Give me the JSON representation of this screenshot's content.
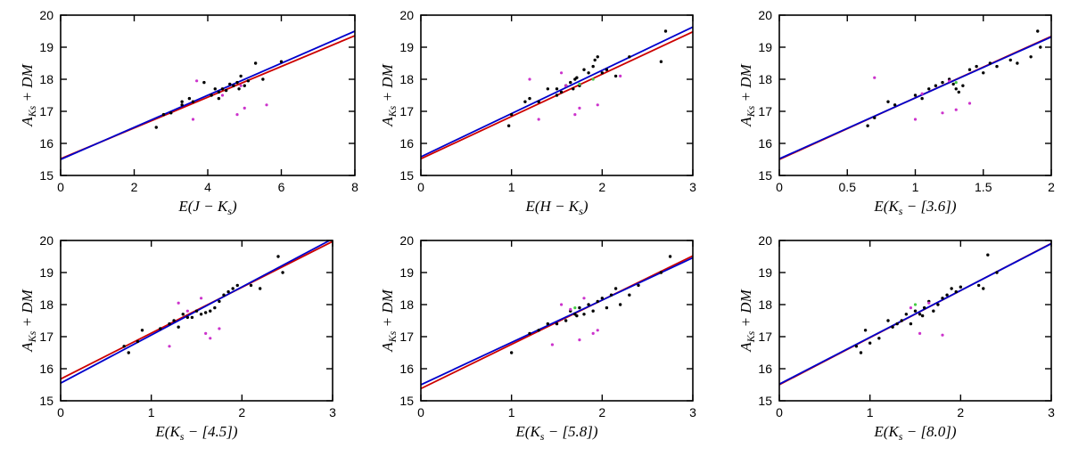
{
  "colors": {
    "points": "#000000",
    "outliers": "#cc33cc",
    "green_points": "#44cc44",
    "fit_red": "#cc0000",
    "fit_blue": "#0000cc"
  },
  "chart_data": [
    {
      "type": "scatter",
      "xlabel": "E(J − K_s)",
      "ylabel": "A_Ks + DM",
      "xlim": [
        0,
        8
      ],
      "ylim": [
        15,
        20
      ],
      "xticks": [
        "0",
        "2",
        "4",
        "6",
        "8"
      ],
      "yticks": [
        "15",
        "16",
        "17",
        "18",
        "19",
        "20"
      ],
      "lines": [
        {
          "color": "red",
          "intercept": 15.52,
          "slope": 0.48
        },
        {
          "color": "blue",
          "intercept": 15.5,
          "slope": 0.5
        }
      ],
      "points": [
        [
          2.6,
          16.5
        ],
        [
          2.8,
          16.9
        ],
        [
          3.0,
          16.95
        ],
        [
          3.3,
          17.2
        ],
        [
          3.3,
          17.3
        ],
        [
          3.5,
          17.4
        ],
        [
          3.6,
          17.3
        ],
        [
          3.9,
          17.9
        ],
        [
          4.1,
          17.5
        ],
        [
          4.2,
          17.7
        ],
        [
          4.3,
          17.6
        ],
        [
          4.4,
          17.7
        ],
        [
          4.5,
          17.65
        ],
        [
          4.7,
          17.8
        ],
        [
          4.8,
          17.9
        ],
        [
          4.9,
          18.1
        ],
        [
          5.0,
          17.8
        ],
        [
          5.1,
          17.95
        ],
        [
          5.3,
          18.5
        ],
        [
          5.5,
          18.0
        ],
        [
          6.0,
          18.55
        ],
        [
          4.6,
          17.85
        ],
        [
          4.85,
          17.7
        ],
        [
          4.3,
          17.4
        ]
      ],
      "outliers": [
        [
          3.7,
          17.95
        ],
        [
          3.6,
          16.75
        ],
        [
          4.8,
          16.9
        ],
        [
          5.0,
          17.1
        ],
        [
          5.6,
          17.2
        ],
        [
          4.4,
          17.5
        ],
        [
          4.9,
          17.8
        ]
      ],
      "green": []
    },
    {
      "type": "scatter",
      "xlabel": "E(H − K_s)",
      "ylabel": "A_Ks + DM",
      "xlim": [
        0,
        3
      ],
      "ylim": [
        15,
        20
      ],
      "xticks": [
        "0",
        "1",
        "2",
        "3"
      ],
      "yticks": [
        "15",
        "16",
        "17",
        "18",
        "19",
        "20"
      ],
      "lines": [
        {
          "color": "red",
          "intercept": 15.52,
          "slope": 1.32
        },
        {
          "color": "blue",
          "intercept": 15.58,
          "slope": 1.35
        }
      ],
      "points": [
        [
          0.97,
          16.55
        ],
        [
          1.0,
          16.9
        ],
        [
          1.15,
          17.3
        ],
        [
          1.2,
          17.4
        ],
        [
          1.3,
          17.3
        ],
        [
          1.4,
          17.7
        ],
        [
          1.5,
          17.7
        ],
        [
          1.5,
          17.5
        ],
        [
          1.55,
          17.6
        ],
        [
          1.6,
          17.8
        ],
        [
          1.65,
          17.9
        ],
        [
          1.7,
          18.0
        ],
        [
          1.75,
          17.8
        ],
        [
          1.8,
          18.3
        ],
        [
          1.85,
          18.2
        ],
        [
          1.9,
          18.4
        ],
        [
          1.92,
          18.6
        ],
        [
          1.95,
          18.7
        ],
        [
          2.0,
          18.2
        ],
        [
          2.05,
          18.3
        ],
        [
          2.15,
          18.1
        ],
        [
          2.3,
          18.7
        ],
        [
          2.65,
          18.55
        ],
        [
          2.7,
          19.5
        ],
        [
          1.68,
          17.7
        ],
        [
          1.72,
          18.05
        ]
      ],
      "outliers": [
        [
          1.2,
          18.0
        ],
        [
          1.3,
          16.75
        ],
        [
          1.55,
          18.2
        ],
        [
          1.7,
          16.9
        ],
        [
          1.75,
          17.1
        ],
        [
          1.95,
          17.2
        ],
        [
          2.2,
          18.1
        ],
        [
          1.6,
          17.8
        ]
      ],
      "green": [
        [
          1.75,
          17.85
        ],
        [
          1.9,
          18.0
        ]
      ]
    },
    {
      "type": "scatter",
      "xlabel": "E(K_s − [3.6])",
      "ylabel": "A_Ks + DM",
      "xlim": [
        0,
        2
      ],
      "ylim": [
        15,
        20
      ],
      "xticks": [
        "0",
        "0.5",
        "1",
        "1.5",
        "2"
      ],
      "yticks": [
        "15",
        "16",
        "17",
        "18",
        "19",
        "20"
      ],
      "lines": [
        {
          "color": "red",
          "intercept": 15.5,
          "slope": 1.92
        },
        {
          "color": "blue",
          "intercept": 15.52,
          "slope": 1.9
        }
      ],
      "points": [
        [
          0.65,
          16.55
        ],
        [
          0.7,
          16.8
        ],
        [
          0.8,
          17.3
        ],
        [
          0.85,
          17.2
        ],
        [
          1.0,
          17.5
        ],
        [
          1.05,
          17.4
        ],
        [
          1.1,
          17.7
        ],
        [
          1.15,
          17.8
        ],
        [
          1.2,
          17.9
        ],
        [
          1.25,
          18.0
        ],
        [
          1.3,
          17.7
        ],
        [
          1.32,
          17.6
        ],
        [
          1.35,
          17.8
        ],
        [
          1.4,
          18.3
        ],
        [
          1.45,
          18.4
        ],
        [
          1.5,
          18.2
        ],
        [
          1.55,
          18.5
        ],
        [
          1.6,
          18.4
        ],
        [
          1.7,
          18.6
        ],
        [
          1.75,
          18.5
        ],
        [
          1.85,
          18.7
        ],
        [
          1.9,
          19.5
        ],
        [
          1.92,
          19.0
        ],
        [
          1.28,
          17.85
        ]
      ],
      "outliers": [
        [
          0.7,
          18.05
        ],
        [
          1.0,
          16.75
        ],
        [
          1.2,
          16.95
        ],
        [
          1.3,
          17.05
        ],
        [
          1.4,
          17.25
        ],
        [
          1.05,
          17.55
        ],
        [
          1.25,
          17.95
        ]
      ],
      "green": [
        [
          1.3,
          17.9
        ]
      ]
    },
    {
      "type": "scatter",
      "xlabel": "E(K_s − [4.5])",
      "ylabel": "A_Ks + DM",
      "xlim": [
        0,
        3
      ],
      "ylim": [
        15,
        20
      ],
      "xticks": [
        "0",
        "1",
        "2",
        "3"
      ],
      "yticks": [
        "15",
        "16",
        "17",
        "18",
        "19",
        "20"
      ],
      "lines": [
        {
          "color": "red",
          "intercept": 15.68,
          "slope": 1.43
        },
        {
          "color": "blue",
          "intercept": 15.55,
          "slope": 1.5
        }
      ],
      "points": [
        [
          0.7,
          16.7
        ],
        [
          0.75,
          16.5
        ],
        [
          0.85,
          16.85
        ],
        [
          0.9,
          17.2
        ],
        [
          1.1,
          17.25
        ],
        [
          1.2,
          17.4
        ],
        [
          1.25,
          17.5
        ],
        [
          1.3,
          17.3
        ],
        [
          1.35,
          17.7
        ],
        [
          1.4,
          17.6
        ],
        [
          1.5,
          17.8
        ],
        [
          1.55,
          17.7
        ],
        [
          1.6,
          17.75
        ],
        [
          1.65,
          17.8
        ],
        [
          1.7,
          17.9
        ],
        [
          1.75,
          18.1
        ],
        [
          1.8,
          18.3
        ],
        [
          1.85,
          18.4
        ],
        [
          1.9,
          18.5
        ],
        [
          1.95,
          18.6
        ],
        [
          2.1,
          18.6
        ],
        [
          2.2,
          18.5
        ],
        [
          2.4,
          19.5
        ],
        [
          2.45,
          19.0
        ],
        [
          1.45,
          17.6
        ]
      ],
      "outliers": [
        [
          1.2,
          16.7
        ],
        [
          1.3,
          18.05
        ],
        [
          1.55,
          18.2
        ],
        [
          1.6,
          17.1
        ],
        [
          1.65,
          16.95
        ],
        [
          1.75,
          17.25
        ],
        [
          1.4,
          17.8
        ]
      ],
      "green": []
    },
    {
      "type": "scatter",
      "xlabel": "E(K_s − [5.8])",
      "ylabel": "A_Ks + DM",
      "xlim": [
        0,
        3
      ],
      "ylim": [
        15,
        20
      ],
      "xticks": [
        "0",
        "1",
        "2",
        "3"
      ],
      "yticks": [
        "15",
        "16",
        "17",
        "18",
        "19",
        "20"
      ],
      "lines": [
        {
          "color": "red",
          "intercept": 15.38,
          "slope": 1.38
        },
        {
          "color": "blue",
          "intercept": 15.5,
          "slope": 1.32
        }
      ],
      "points": [
        [
          1.0,
          16.5
        ],
        [
          1.2,
          17.1
        ],
        [
          1.3,
          17.2
        ],
        [
          1.4,
          17.4
        ],
        [
          1.5,
          17.4
        ],
        [
          1.6,
          17.5
        ],
        [
          1.65,
          17.8
        ],
        [
          1.7,
          17.7
        ],
        [
          1.75,
          17.9
        ],
        [
          1.8,
          17.7
        ],
        [
          1.85,
          18.0
        ],
        [
          1.9,
          17.8
        ],
        [
          1.95,
          18.1
        ],
        [
          2.0,
          18.2
        ],
        [
          2.05,
          17.9
        ],
        [
          2.1,
          18.3
        ],
        [
          2.15,
          18.5
        ],
        [
          2.2,
          18.0
        ],
        [
          2.3,
          18.3
        ],
        [
          2.4,
          18.6
        ],
        [
          2.65,
          19.0
        ],
        [
          2.75,
          19.5
        ],
        [
          1.72,
          17.65
        ]
      ],
      "outliers": [
        [
          1.45,
          16.75
        ],
        [
          1.55,
          18.0
        ],
        [
          1.75,
          16.9
        ],
        [
          1.9,
          17.1
        ],
        [
          1.95,
          17.2
        ],
        [
          1.65,
          17.85
        ],
        [
          1.8,
          18.2
        ]
      ],
      "green": [
        [
          1.7,
          17.9
        ]
      ]
    },
    {
      "type": "scatter",
      "xlabel": "E(K_s − [8.0])",
      "ylabel": "A_Ks + DM",
      "xlim": [
        0,
        3
      ],
      "ylim": [
        15,
        20
      ],
      "xticks": [
        "0",
        "1",
        "2",
        "3"
      ],
      "yticks": [
        "15",
        "16",
        "17",
        "18",
        "19",
        "20"
      ],
      "lines": [
        {
          "color": "red",
          "intercept": 15.5,
          "slope": 1.47
        },
        {
          "color": "blue",
          "intercept": 15.52,
          "slope": 1.46
        }
      ],
      "points": [
        [
          0.85,
          16.7
        ],
        [
          0.9,
          16.5
        ],
        [
          0.95,
          17.2
        ],
        [
          1.0,
          16.8
        ],
        [
          1.1,
          16.95
        ],
        [
          1.2,
          17.5
        ],
        [
          1.25,
          17.3
        ],
        [
          1.3,
          17.4
        ],
        [
          1.35,
          17.5
        ],
        [
          1.4,
          17.7
        ],
        [
          1.45,
          17.4
        ],
        [
          1.5,
          17.8
        ],
        [
          1.55,
          17.7
        ],
        [
          1.6,
          17.9
        ],
        [
          1.65,
          18.1
        ],
        [
          1.7,
          17.8
        ],
        [
          1.75,
          18.0
        ],
        [
          1.8,
          18.2
        ],
        [
          1.85,
          18.3
        ],
        [
          1.9,
          18.5
        ],
        [
          1.95,
          18.4
        ],
        [
          2.0,
          18.55
        ],
        [
          2.2,
          18.6
        ],
        [
          2.25,
          18.5
        ],
        [
          2.3,
          19.55
        ],
        [
          2.4,
          19.0
        ],
        [
          1.58,
          17.65
        ]
      ],
      "outliers": [
        [
          1.55,
          17.1
        ],
        [
          1.8,
          17.05
        ],
        [
          1.65,
          18.05
        ],
        [
          1.45,
          17.9
        ]
      ],
      "green": [
        [
          1.5,
          18.0
        ]
      ]
    }
  ]
}
